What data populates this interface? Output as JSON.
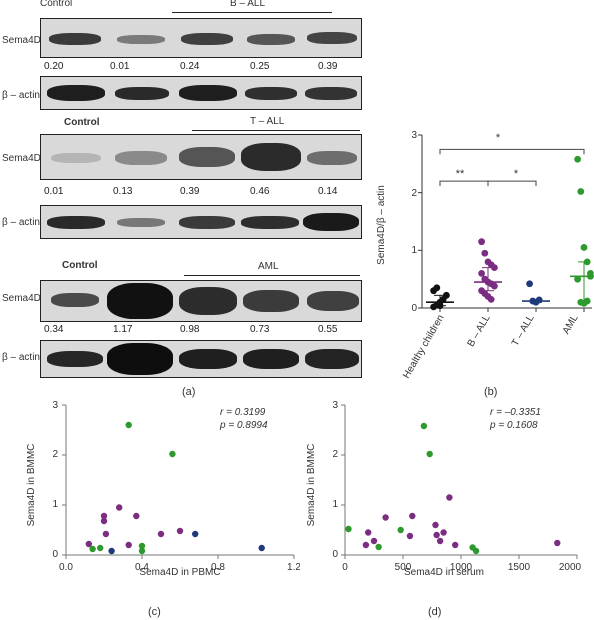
{
  "blot_control_label": "Control",
  "blot_b": {
    "group_label": "B – ALL",
    "target_label": "Sema4D",
    "loading_label": "β – actin",
    "values": [
      "0.20",
      "0.01",
      "0.24",
      "0.25",
      "0.39"
    ]
  },
  "blot_t": {
    "group_label": "T – ALL",
    "target_label": "Sema4D",
    "loading_label": "β – actin",
    "values": [
      "0.01",
      "0.13",
      "0.39",
      "0.46",
      "0.14"
    ]
  },
  "blot_aml": {
    "group_label": "AML",
    "target_label": "Sema4D",
    "loading_label": "β – actin",
    "values": [
      "0.34",
      "1.17",
      "0.98",
      "0.73",
      "0.55"
    ]
  },
  "panel_labels": {
    "a": "(a)",
    "b": "(b)",
    "c": "(c)",
    "d": "(d)"
  },
  "colors": {
    "healthy": "#111111",
    "ball": "#7b2d82",
    "tall": "#1f3a7a",
    "aml": "#2e9a2e"
  },
  "chart_data": [
    {
      "type": "scatter",
      "ylabel": "Sema4D/β – actin",
      "ylim": [
        0,
        3
      ],
      "yticks": [
        "0",
        "1",
        "2",
        "3"
      ],
      "categories": [
        "Healthy children",
        "B – ALL",
        "T – ALL",
        "AML"
      ],
      "significance": [
        "*",
        "**",
        "*"
      ],
      "series": [
        {
          "name": "Healthy children",
          "color": "#111111",
          "median": 0.1,
          "values": [
            0.02,
            0.05,
            0.1,
            0.15,
            0.22,
            0.3,
            0.35,
            0.04
          ]
        },
        {
          "name": "B – ALL",
          "color": "#7b2d82",
          "median": 0.45,
          "values": [
            1.15,
            0.95,
            0.8,
            0.75,
            0.7,
            0.6,
            0.5,
            0.45,
            0.42,
            0.38,
            0.3,
            0.25,
            0.2,
            0.15
          ]
        },
        {
          "name": "T – ALL",
          "color": "#1f3a7a",
          "median": 0.12,
          "values": [
            0.42,
            0.12,
            0.1,
            0.14
          ]
        },
        {
          "name": "AML",
          "color": "#2e9a2e",
          "median": 0.55,
          "values": [
            2.58,
            2.02,
            1.05,
            0.8,
            0.55,
            0.5,
            0.1,
            0.08,
            0.12,
            0.6
          ]
        }
      ]
    },
    {
      "type": "scatter",
      "xlabel": "Sema4D in PBMC",
      "ylabel": "Sema4D in BMMC",
      "xlim": [
        0,
        1.2
      ],
      "ylim": [
        0,
        3
      ],
      "xticks": [
        "0.0",
        "0.4",
        "0.8",
        "1.2"
      ],
      "yticks": [
        "0",
        "1",
        "2",
        "3"
      ],
      "stats_r": "r = 0.3199",
      "stats_p": "p = 0.8994",
      "points": [
        {
          "x": 0.33,
          "y": 2.6,
          "color": "#2e9a2e"
        },
        {
          "x": 0.56,
          "y": 2.02,
          "color": "#2e9a2e"
        },
        {
          "x": 0.28,
          "y": 0.95,
          "color": "#7b2d82"
        },
        {
          "x": 0.2,
          "y": 0.78,
          "color": "#7b2d82"
        },
        {
          "x": 0.37,
          "y": 0.78,
          "color": "#7b2d82"
        },
        {
          "x": 0.2,
          "y": 0.68,
          "color": "#7b2d82"
        },
        {
          "x": 0.6,
          "y": 0.48,
          "color": "#7b2d82"
        },
        {
          "x": 0.5,
          "y": 0.42,
          "color": "#7b2d82"
        },
        {
          "x": 0.21,
          "y": 0.42,
          "color": "#7b2d82"
        },
        {
          "x": 0.68,
          "y": 0.42,
          "color": "#1f3a7a"
        },
        {
          "x": 0.12,
          "y": 0.22,
          "color": "#7b2d82"
        },
        {
          "x": 0.33,
          "y": 0.2,
          "color": "#7b2d82"
        },
        {
          "x": 0.4,
          "y": 0.18,
          "color": "#2e9a2e"
        },
        {
          "x": 0.14,
          "y": 0.12,
          "color": "#2e9a2e"
        },
        {
          "x": 0.18,
          "y": 0.14,
          "color": "#2e9a2e"
        },
        {
          "x": 0.4,
          "y": 0.08,
          "color": "#2e9a2e"
        },
        {
          "x": 0.24,
          "y": 0.08,
          "color": "#1f3a7a"
        },
        {
          "x": 1.03,
          "y": 0.14,
          "color": "#1f3a7a"
        }
      ]
    },
    {
      "type": "scatter",
      "xlabel": "Sema4D in serum",
      "ylabel": "Sema4D in BMMC",
      "xlim": [
        0,
        2000
      ],
      "ylim": [
        0,
        3
      ],
      "xticks": [
        "0",
        "500",
        "1000",
        "1500",
        "2000"
      ],
      "yticks": [
        "0",
        "1",
        "2",
        "3"
      ],
      "stats_r": "r = –0.3351",
      "stats_p": "p = 0.1608",
      "points": [
        {
          "x": 680,
          "y": 2.58,
          "color": "#2e9a2e"
        },
        {
          "x": 730,
          "y": 2.02,
          "color": "#2e9a2e"
        },
        {
          "x": 900,
          "y": 1.15,
          "color": "#7b2d82"
        },
        {
          "x": 580,
          "y": 0.78,
          "color": "#7b2d82"
        },
        {
          "x": 350,
          "y": 0.75,
          "color": "#7b2d82"
        },
        {
          "x": 780,
          "y": 0.6,
          "color": "#7b2d82"
        },
        {
          "x": 30,
          "y": 0.52,
          "color": "#2e9a2e"
        },
        {
          "x": 480,
          "y": 0.5,
          "color": "#2e9a2e"
        },
        {
          "x": 850,
          "y": 0.45,
          "color": "#7b2d82"
        },
        {
          "x": 200,
          "y": 0.45,
          "color": "#7b2d82"
        },
        {
          "x": 790,
          "y": 0.4,
          "color": "#7b2d82"
        },
        {
          "x": 560,
          "y": 0.38,
          "color": "#7b2d82"
        },
        {
          "x": 250,
          "y": 0.28,
          "color": "#7b2d82"
        },
        {
          "x": 820,
          "y": 0.28,
          "color": "#7b2d82"
        },
        {
          "x": 180,
          "y": 0.2,
          "color": "#7b2d82"
        },
        {
          "x": 950,
          "y": 0.2,
          "color": "#7b2d82"
        },
        {
          "x": 1830,
          "y": 0.24,
          "color": "#7b2d82"
        },
        {
          "x": 290,
          "y": 0.16,
          "color": "#2e9a2e"
        },
        {
          "x": 1100,
          "y": 0.15,
          "color": "#2e9a2e"
        },
        {
          "x": 1130,
          "y": 0.08,
          "color": "#2e9a2e"
        }
      ]
    }
  ]
}
